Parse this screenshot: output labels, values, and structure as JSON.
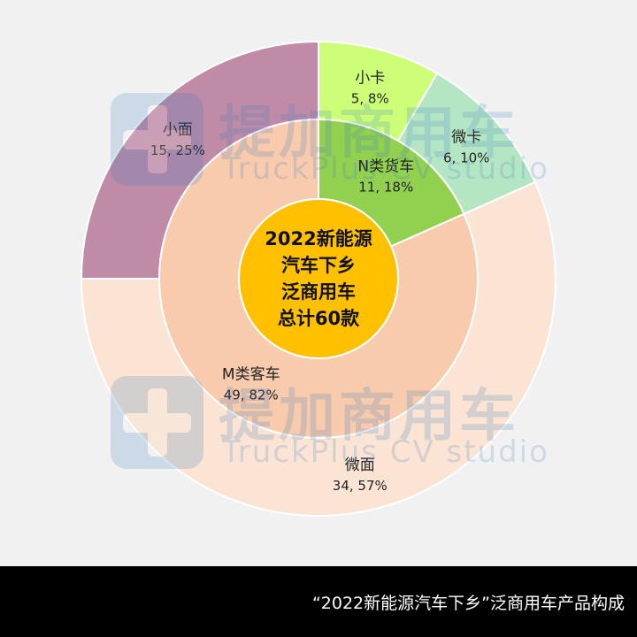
{
  "chart_data": {
    "type": "pie",
    "center_label": [
      "2022新能源",
      "汽车下乡",
      "泛商用车",
      "总计60款"
    ],
    "inner_ring": [
      {
        "label": "N类货车",
        "value_text": "11, 18%",
        "value": 11,
        "percent": 18,
        "color": "#92d050"
      },
      {
        "label": "M类客车",
        "value_text": "49, 82%",
        "value": 49,
        "percent": 82,
        "color": "#f8cbad"
      }
    ],
    "outer_ring": [
      {
        "label": "小卡",
        "value_text": "5, 8%",
        "value": 5,
        "percent": 8,
        "color": "#ccff77"
      },
      {
        "label": "微卡",
        "value_text": "6, 10%",
        "value": 6,
        "percent": 10,
        "color": "#b5e6c3"
      },
      {
        "label": "微面",
        "value_text": "34, 57%",
        "value": 34,
        "percent": 57,
        "color": "#fbe4d3"
      },
      {
        "label": "小面",
        "value_text": "15, 25%",
        "value": 15,
        "percent": 25,
        "color": "#c08ba6"
      }
    ],
    "colors": {
      "center": "#ffc000",
      "background": "#f1f1f1"
    }
  },
  "watermark": {
    "cn": "提加商用车",
    "en": "TruckPlus CV studio"
  },
  "footer": {
    "caption": "“2022新能源汽车下乡”泛商用车产品构成"
  }
}
